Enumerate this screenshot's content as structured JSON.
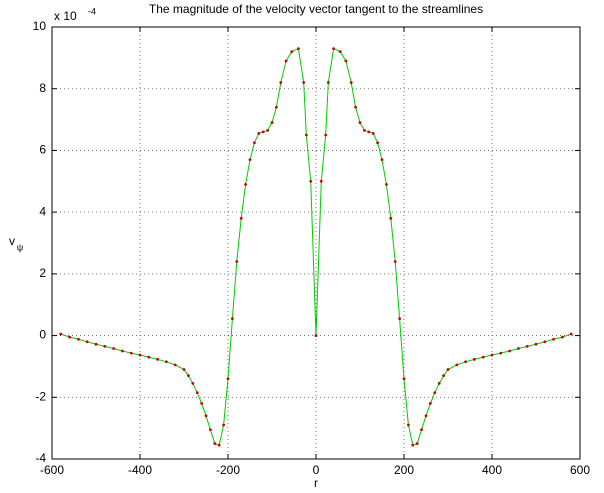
{
  "chart_data": {
    "type": "line",
    "title": "The magnitude of the velocity vector tangent to the streamlines",
    "xlabel": "r",
    "ylabel": {
      "text": "v",
      "subscript": "ψ"
    },
    "y_multiplier": {
      "base": "x 10",
      "exponent": "-4"
    },
    "x": [
      -580,
      -560,
      -540,
      -520,
      -500,
      -480,
      -460,
      -440,
      -420,
      -400,
      -380,
      -360,
      -340,
      -320,
      -300,
      -290,
      -280,
      -270,
      -260,
      -250,
      -240,
      -230,
      -220,
      -210,
      -200,
      -190,
      -180,
      -170,
      -160,
      -150,
      -140,
      -130,
      -120,
      -110,
      -100,
      -90,
      -80,
      -68,
      -55,
      -40,
      -28,
      -22,
      -12,
      0,
      12,
      22,
      28,
      40,
      55,
      68,
      80,
      90,
      100,
      110,
      120,
      130,
      140,
      150,
      160,
      170,
      180,
      190,
      200,
      210,
      220,
      230,
      240,
      250,
      260,
      270,
      280,
      290,
      300,
      320,
      340,
      360,
      380,
      400,
      420,
      440,
      460,
      480,
      500,
      520,
      540,
      560,
      580
    ],
    "series": [
      {
        "color": "#00cc00",
        "marker_color": "#cc0000",
        "values": [
          0.05,
          -0.05,
          -0.12,
          -0.2,
          -0.28,
          -0.35,
          -0.42,
          -0.5,
          -0.57,
          -0.63,
          -0.7,
          -0.77,
          -0.85,
          -0.95,
          -1.1,
          -1.3,
          -1.55,
          -1.85,
          -2.2,
          -2.6,
          -3.05,
          -3.5,
          -3.55,
          -2.9,
          -1.4,
          0.55,
          2.4,
          3.8,
          4.9,
          5.7,
          6.25,
          6.55,
          6.6,
          6.65,
          6.9,
          7.4,
          8.2,
          8.9,
          9.2,
          9.3,
          8.2,
          6.5,
          5.0,
          0,
          5.0,
          6.5,
          8.2,
          9.3,
          9.2,
          8.9,
          8.2,
          7.4,
          6.9,
          6.65,
          6.6,
          6.55,
          6.25,
          5.7,
          4.9,
          3.8,
          2.4,
          0.55,
          -1.4,
          -2.9,
          -3.55,
          -3.5,
          -3.05,
          -2.6,
          -2.2,
          -1.85,
          -1.55,
          -1.3,
          -1.1,
          -0.95,
          -0.85,
          -0.77,
          -0.7,
          -0.63,
          -0.57,
          -0.5,
          -0.42,
          -0.35,
          -0.28,
          -0.2,
          -0.12,
          -0.05,
          0.05
        ]
      }
    ],
    "xlim": [
      -600,
      600
    ],
    "xticks": [
      -600,
      -400,
      -200,
      0,
      200,
      400,
      600
    ],
    "ylim": [
      -4,
      10
    ],
    "yticks": [
      -4,
      -2,
      0,
      2,
      4,
      6,
      8,
      10
    ],
    "grid": true
  }
}
